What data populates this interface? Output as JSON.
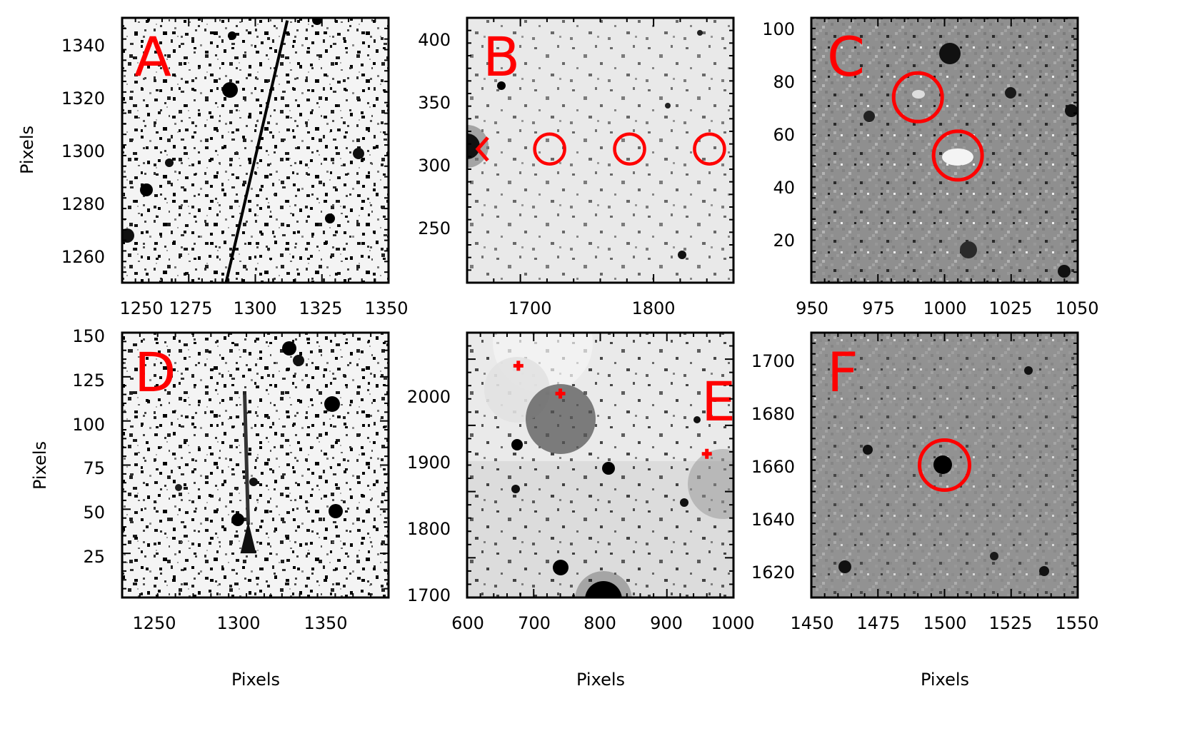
{
  "figure": {
    "xlabel": "Pixels",
    "ylabel": "Pixels"
  },
  "chart_data": [
    {
      "type": "scatter",
      "panel": "A",
      "colormap": "gray_r",
      "xlim": [
        1250,
        1350
      ],
      "ylim": [
        1250,
        1350
      ],
      "xticks": [
        "1250",
        "1275",
        "1300",
        "1325",
        "1350"
      ],
      "yticks": [
        "1260",
        "1280",
        "1300",
        "1320",
        "1340"
      ],
      "xlabel": "",
      "ylabel": "Pixels",
      "annotations": [
        {
          "kind": "streak",
          "from": [
            1289,
            1250
          ],
          "to": [
            1312,
            1349
          ]
        }
      ]
    },
    {
      "type": "scatter",
      "panel": "B",
      "colormap": "gray_r",
      "xlim": [
        1660,
        1860
      ],
      "ylim": [
        205,
        415
      ],
      "xticks": [
        "1700",
        "1800"
      ],
      "yticks": [
        "250",
        "300",
        "350",
        "400"
      ],
      "xlabel": "",
      "ylabel": "",
      "annotations": [
        {
          "kind": "arrowhead",
          "x": 1668,
          "y": 311
        },
        {
          "kind": "circle",
          "x": 1722,
          "y": 311
        },
        {
          "kind": "circle",
          "x": 1782,
          "y": 311
        },
        {
          "kind": "circle",
          "x": 1842,
          "y": 311
        }
      ]
    },
    {
      "type": "scatter",
      "panel": "C",
      "colormap": "gray",
      "xlim": [
        950,
        1050
      ],
      "ylim": [
        5,
        105
      ],
      "xticks": [
        "950",
        "975",
        "1000",
        "1025",
        "1050"
      ],
      "yticks": [
        "20",
        "40",
        "60",
        "80",
        "100"
      ],
      "xlabel": "",
      "ylabel": "",
      "annotations": [
        {
          "kind": "circle",
          "x": 990,
          "y": 75
        },
        {
          "kind": "circle",
          "x": 1005,
          "y": 53
        }
      ]
    },
    {
      "type": "scatter",
      "panel": "D",
      "colormap": "gray_r",
      "xlim": [
        1235,
        1385
      ],
      "ylim": [
        0,
        150
      ],
      "xticks": [
        "1250",
        "1300",
        "1350"
      ],
      "yticks": [
        "25",
        "50",
        "75",
        "100",
        "125",
        "150"
      ],
      "xlabel": "Pixels",
      "ylabel": "Pixels",
      "annotations": [
        {
          "kind": "streak",
          "from": [
            1306,
            25
          ],
          "to": [
            1304,
            115
          ]
        }
      ]
    },
    {
      "type": "scatter",
      "panel": "E",
      "colormap": "gray_r",
      "xlim": [
        600,
        1000
      ],
      "ylim": [
        1640,
        2040
      ],
      "xticks": [
        "600",
        "700",
        "800",
        "900",
        "1000"
      ],
      "yticks": [
        "1700",
        "1800",
        "1900",
        "2000"
      ],
      "xlabel": "Pixels",
      "ylabel": "",
      "annotations": [
        {
          "kind": "marker",
          "x": 677,
          "y": 1990
        },
        {
          "kind": "marker",
          "x": 740,
          "y": 1948
        },
        {
          "kind": "marker",
          "x": 960,
          "y": 1857
        }
      ]
    },
    {
      "type": "scatter",
      "panel": "F",
      "colormap": "gray",
      "xlim": [
        1450,
        1550
      ],
      "ylim": [
        1610,
        1710
      ],
      "xticks": [
        "1450",
        "1475",
        "1500",
        "1525",
        "1550"
      ],
      "yticks": [
        "1620",
        "1640",
        "1660",
        "1680",
        "1700"
      ],
      "xlabel": "Pixels",
      "ylabel": "",
      "annotations": [
        {
          "kind": "circle",
          "x": 1500,
          "y": 1660
        }
      ]
    }
  ]
}
